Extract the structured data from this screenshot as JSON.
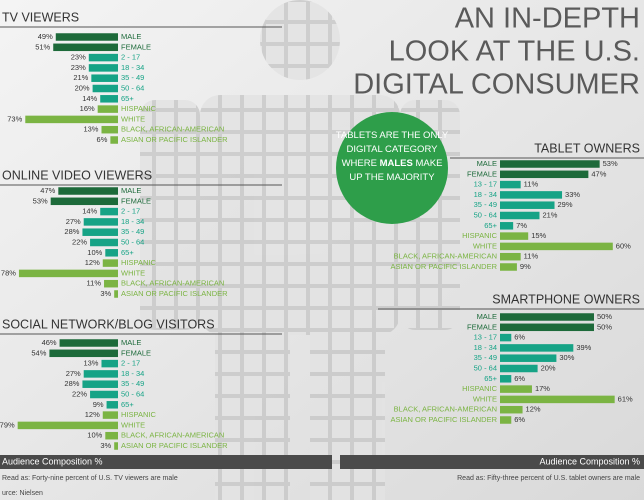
{
  "header": {
    "lines": [
      "AN IN-DEPTH",
      "LOOK AT THE U.S.",
      "DIGITAL CONSUMER"
    ]
  },
  "callout": {
    "lines": [
      [
        "TABLETS ARE THE ONLY"
      ],
      [
        "DIGITAL CATEGORY"
      ],
      [
        "WHERE ",
        "MALES",
        " MAKE"
      ],
      [
        "UP THE MAJORITY"
      ]
    ]
  },
  "chart_data": [
    {
      "type": "bar",
      "orientation": "horizontal",
      "direction": "left",
      "title": "TV VIEWERS",
      "categories": [
        "MALE",
        "FEMALE",
        "2 - 17",
        "18 - 34",
        "35 - 49",
        "50 - 64",
        "65+",
        "HISPANIC",
        "WHITE",
        "BLACK, AFRICAN-AMERICAN",
        "ASIAN OR PACIFIC ISLANDER"
      ],
      "values": [
        49,
        51,
        23,
        23,
        21,
        20,
        14,
        16,
        73,
        13,
        6
      ],
      "value_labels": [
        "49%",
        "51%",
        "23%",
        "23%",
        "21%",
        "20%",
        "14%",
        "16%",
        "73%",
        "13%",
        "6%"
      ],
      "colors": [
        "#1d6a3a",
        "#1d6a3a",
        "#16a386",
        "#16a386",
        "#16a386",
        "#16a386",
        "#16a386",
        "#7bb443",
        "#7bb443",
        "#7bb443",
        "#7bb443"
      ]
    },
    {
      "type": "bar",
      "orientation": "horizontal",
      "direction": "left",
      "title": "ONLINE VIDEO VIEWERS",
      "categories": [
        "MALE",
        "FEMALE",
        "2 - 17",
        "18 - 34",
        "35 - 49",
        "50 - 64",
        "65+",
        "HISPANIC",
        "WHITE",
        "BLACK, AFRICAN-AMERICAN",
        "ASIAN OR PACIFIC ISLANDER"
      ],
      "values": [
        47,
        53,
        14,
        27,
        28,
        22,
        10,
        12,
        78,
        11,
        3
      ],
      "value_labels": [
        "47%",
        "53%",
        "14%",
        "27%",
        "28%",
        "22%",
        "10%",
        "12%",
        "78%",
        "11%",
        "3%"
      ],
      "colors": [
        "#1d6a3a",
        "#1d6a3a",
        "#16a386",
        "#16a386",
        "#16a386",
        "#16a386",
        "#16a386",
        "#7bb443",
        "#7bb443",
        "#7bb443",
        "#7bb443"
      ]
    },
    {
      "type": "bar",
      "orientation": "horizontal",
      "direction": "left",
      "title": "SOCIAL NETWORK/BLOG VISITORS",
      "categories": [
        "MALE",
        "FEMALE",
        "2 - 17",
        "18 - 34",
        "35 - 49",
        "50 - 64",
        "65+",
        "HISPANIC",
        "WHITE",
        "BLACK, AFRICAN-AMERICAN",
        "ASIAN OR PACIFIC ISLANDER"
      ],
      "values": [
        46,
        54,
        13,
        27,
        28,
        22,
        9,
        12,
        79,
        10,
        3
      ],
      "value_labels": [
        "46%",
        "54%",
        "13%",
        "27%",
        "28%",
        "22%",
        "9%",
        "12%",
        "79%",
        "10%",
        "3%"
      ],
      "colors": [
        "#1d6a3a",
        "#1d6a3a",
        "#16a386",
        "#16a386",
        "#16a386",
        "#16a386",
        "#16a386",
        "#7bb443",
        "#7bb443",
        "#7bb443",
        "#7bb443"
      ]
    },
    {
      "type": "bar",
      "orientation": "horizontal",
      "direction": "right",
      "title": "TABLET OWNERS",
      "categories": [
        "MALE",
        "FEMALE",
        "13 - 17",
        "18 - 34",
        "35 - 49",
        "50 - 64",
        "65+",
        "HISPANIC",
        "WHITE",
        "BLACK, AFRICAN-AMERICAN",
        "ASIAN OR PACIFIC ISLANDER"
      ],
      "values": [
        53,
        47,
        11,
        33,
        29,
        21,
        7,
        15,
        60,
        11,
        9
      ],
      "value_labels": [
        "53%",
        "47%",
        "11%",
        "33%",
        "29%",
        "21%",
        "7%",
        "15%",
        "60%",
        "11%",
        "9%"
      ],
      "colors": [
        "#1d6a3a",
        "#1d6a3a",
        "#16a386",
        "#16a386",
        "#16a386",
        "#16a386",
        "#16a386",
        "#7bb443",
        "#7bb443",
        "#7bb443",
        "#7bb443"
      ]
    },
    {
      "type": "bar",
      "orientation": "horizontal",
      "direction": "right",
      "title": "SMARTPHONE OWNERS",
      "categories": [
        "MALE",
        "FEMALE",
        "13 - 17",
        "18 - 34",
        "35 - 49",
        "50 - 64",
        "65+",
        "HISPANIC",
        "WHITE",
        "BLACK, AFRICAN-AMERICAN",
        "ASIAN OR PACIFIC ISLANDER"
      ],
      "values": [
        50,
        50,
        6,
        39,
        30,
        20,
        6,
        17,
        61,
        12,
        6
      ],
      "value_labels": [
        "50%",
        "50%",
        "6%",
        "39%",
        "30%",
        "20%",
        "6%",
        "17%",
        "61%",
        "12%",
        "6%"
      ],
      "colors": [
        "#1d6a3a",
        "#1d6a3a",
        "#16a386",
        "#16a386",
        "#16a386",
        "#16a386",
        "#16a386",
        "#7bb443",
        "#7bb443",
        "#7bb443",
        "#7bb443"
      ]
    }
  ],
  "footer": {
    "left_label": "Audience Composition %",
    "right_label": "Audience Composition %",
    "left_note": "Read as: Forty-nine percent of U.S. TV viewers are male",
    "right_note": "Read as: Fifty-three percent of U.S. tablet owners are male",
    "source": "urce: Nielsen"
  }
}
